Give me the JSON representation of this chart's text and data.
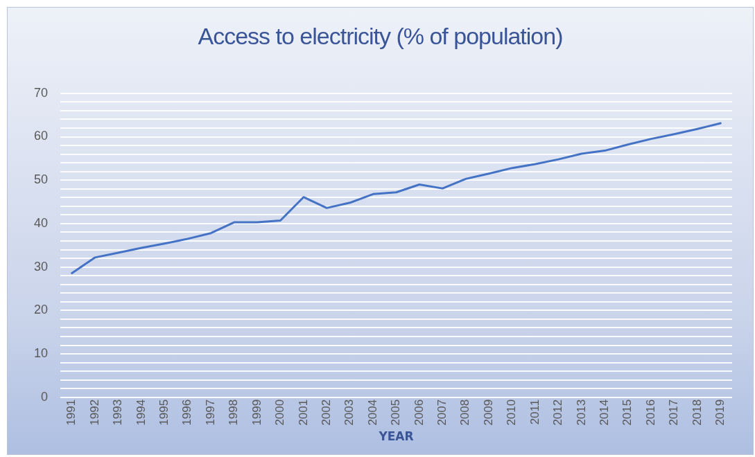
{
  "chart_data": {
    "type": "line",
    "title": "Access to electricity (% of population)",
    "xlabel": "YEAR",
    "categories": [
      "1991",
      "1992",
      "1993",
      "1994",
      "1995",
      "1996",
      "1997",
      "1998",
      "1999",
      "2000",
      "2001",
      "2002",
      "2003",
      "2004",
      "2005",
      "2006",
      "2007",
      "2008",
      "2009",
      "2010",
      "2011",
      "2012",
      "2013",
      "2014",
      "2015",
      "2016",
      "2017",
      "2018",
      "2019"
    ],
    "series": [
      {
        "color": "#4472c4",
        "values": [
          28.6,
          32.2,
          33.3,
          34.4,
          35.4,
          36.5,
          37.8,
          40.3,
          40.3,
          40.7,
          46.1,
          43.6,
          44.8,
          46.8,
          47.2,
          49.0,
          48.1,
          50.3,
          51.5,
          52.8,
          53.7,
          54.8,
          56.1,
          56.8,
          58.2,
          59.5,
          60.6,
          61.8,
          63.1
        ]
      }
    ],
    "ylim": [
      0,
      70
    ],
    "yticks": [
      0,
      {
        "value": 2,
        "label": null
      },
      {
        "value": 4,
        "label": null
      },
      {
        "value": 6,
        "label": null
      },
      {
        "value": 8,
        "label": null
      },
      10,
      {
        "value": 12,
        "label": null
      },
      {
        "value": 14,
        "label": null
      },
      {
        "value": 16,
        "label": null
      },
      {
        "value": 18,
        "label": null
      },
      20,
      {
        "value": 22,
        "label": null
      },
      {
        "value": 24,
        "label": null
      },
      {
        "value": 26,
        "label": null
      },
      {
        "value": 28,
        "label": null
      },
      30,
      {
        "value": 32,
        "label": null
      },
      {
        "value": 34,
        "label": null
      },
      {
        "value": 36,
        "label": null
      },
      {
        "value": 38,
        "label": null
      },
      40,
      {
        "value": 42,
        "label": null
      },
      {
        "value": 44,
        "label": null
      },
      {
        "value": 46,
        "label": null
      },
      {
        "value": 48,
        "label": null
      },
      50,
      {
        "value": 52,
        "label": null
      },
      {
        "value": 54,
        "label": null
      },
      {
        "value": 56,
        "label": null
      },
      {
        "value": 58,
        "label": null
      },
      60,
      {
        "value": 62,
        "label": null
      },
      {
        "value": 64,
        "label": null
      },
      {
        "value": 66,
        "label": null
      },
      {
        "value": 68,
        "label": null
      },
      70
    ],
    "grid": "y",
    "legend": false,
    "marker": "none",
    "line_style": "solid"
  }
}
